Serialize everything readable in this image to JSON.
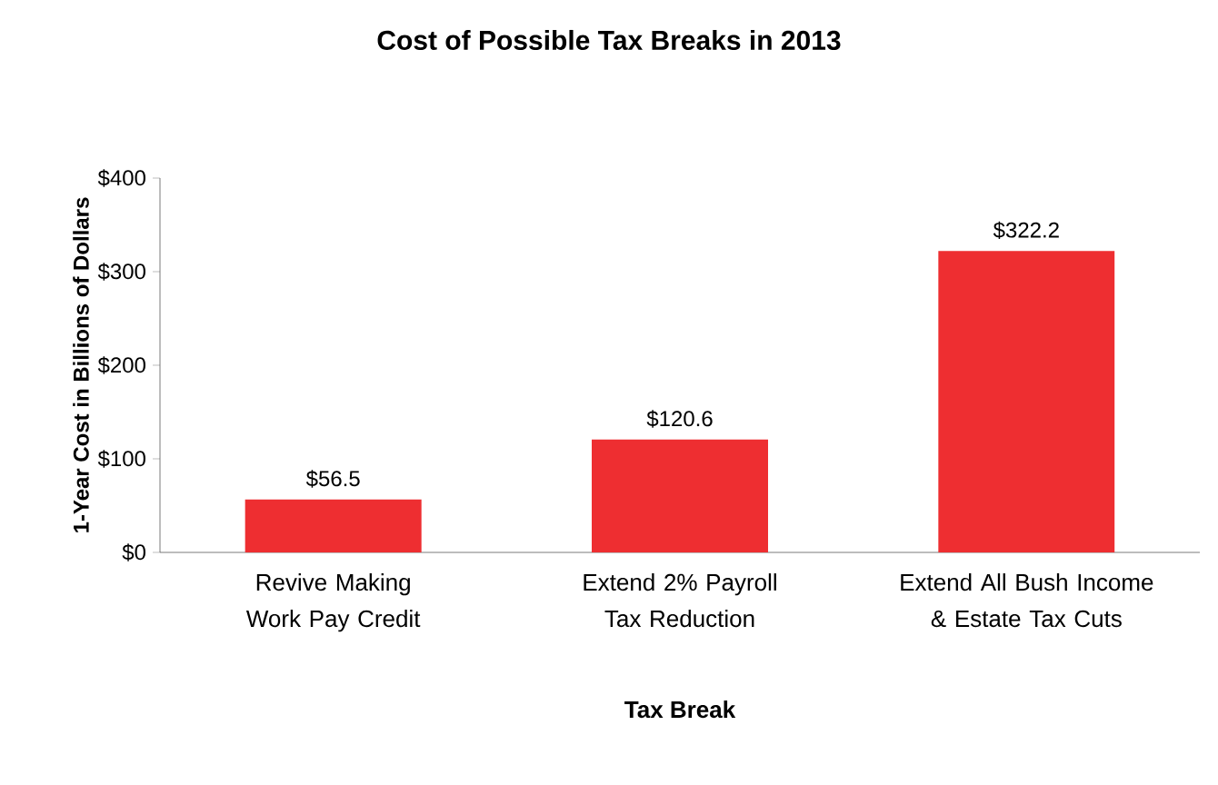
{
  "chart_data": {
    "type": "bar",
    "title": "Cost of Possible Tax Breaks in 2013",
    "xlabel": "Tax Break",
    "ylabel": "1-Year Cost in Billions of Dollars",
    "categories": [
      "Revive Making Work Pay Credit",
      "Extend 2% Payroll Tax Reduction",
      "Extend All Bush Income & Estate Tax Cuts"
    ],
    "values": [
      56.5,
      120.6,
      322.2
    ],
    "value_labels": [
      "$56.5",
      "$120.6",
      "$322.2"
    ],
    "color": "#ee2e31",
    "ylim": [
      0,
      400
    ],
    "yticks": [
      {
        "value": 0,
        "label": "$0"
      },
      {
        "value": 100,
        "label": "$100"
      },
      {
        "value": 200,
        "label": "$200"
      },
      {
        "value": 300,
        "label": "$300"
      },
      {
        "value": 400,
        "label": "$400"
      }
    ],
    "grid": false
  }
}
